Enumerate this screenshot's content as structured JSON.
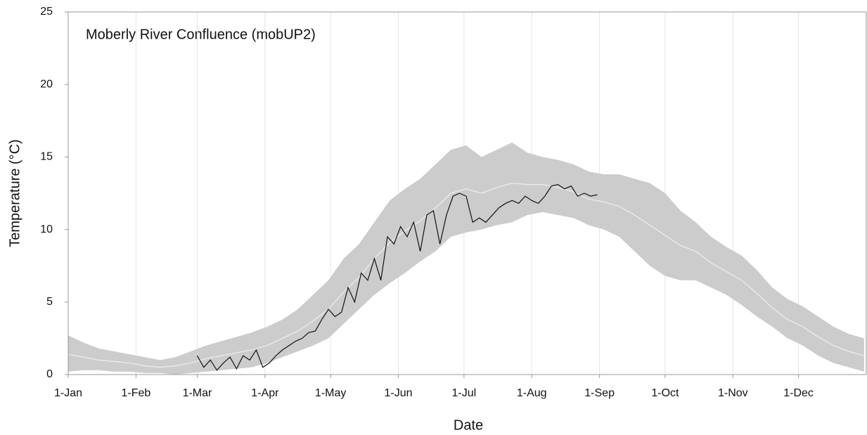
{
  "chart_data": {
    "type": "band_line",
    "title": "Moberly River Confluence (mobUP2)",
    "x_label": "Date",
    "y_label": "Temperature (°C)",
    "xlim": [
      0,
      365
    ],
    "xticks": [
      {
        "value": 0,
        "label": "1-Jan"
      },
      {
        "value": 31,
        "label": "1-Feb"
      },
      {
        "value": 59,
        "label": "1-Mar"
      },
      {
        "value": 90,
        "label": "1-Apr"
      },
      {
        "value": 120,
        "label": "1-May"
      },
      {
        "value": 151,
        "label": "1-Jun"
      },
      {
        "value": 181,
        "label": "1-Jul"
      },
      {
        "value": 212,
        "label": "1-Aug"
      },
      {
        "value": 243,
        "label": "1-Sep"
      },
      {
        "value": 273,
        "label": "1-Oct"
      },
      {
        "value": 304,
        "label": "1-Nov"
      },
      {
        "value": 334,
        "label": "1-Dec"
      }
    ],
    "ylim": [
      0,
      25
    ],
    "yticks": [
      0,
      5,
      10,
      15,
      20,
      25
    ],
    "grid": true,
    "band": {
      "color": "#cccccc",
      "x": [
        0,
        7,
        14,
        21,
        28,
        35,
        42,
        49,
        56,
        63,
        70,
        77,
        84,
        91,
        98,
        105,
        112,
        119,
        126,
        133,
        140,
        147,
        154,
        161,
        168,
        175,
        182,
        189,
        196,
        203,
        210,
        217,
        224,
        231,
        238,
        245,
        252,
        259,
        266,
        273,
        280,
        287,
        294,
        301,
        308,
        315,
        322,
        329,
        336,
        343,
        350,
        357,
        364
      ],
      "upper": [
        2.7,
        2.2,
        1.8,
        1.6,
        1.4,
        1.2,
        1.0,
        1.2,
        1.6,
        2.0,
        2.3,
        2.6,
        2.9,
        3.3,
        3.8,
        4.5,
        5.5,
        6.5,
        8.0,
        9.0,
        10.5,
        12.0,
        12.8,
        13.5,
        14.5,
        15.5,
        15.8,
        15.0,
        15.5,
        16.0,
        15.3,
        15.0,
        14.8,
        14.5,
        14.0,
        13.8,
        13.8,
        13.5,
        13.2,
        12.5,
        11.3,
        10.5,
        9.5,
        8.8,
        8.2,
        7.2,
        6.0,
        5.2,
        4.7,
        4.0,
        3.3,
        2.8,
        2.5
      ],
      "lower": [
        0.2,
        0.3,
        0.3,
        0.2,
        0.2,
        0.1,
        0.1,
        0.0,
        0.1,
        0.2,
        0.3,
        0.4,
        0.5,
        0.8,
        1.2,
        1.6,
        2.0,
        2.5,
        3.5,
        4.5,
        5.5,
        6.3,
        7.0,
        7.8,
        8.5,
        9.5,
        9.8,
        10.0,
        10.3,
        10.5,
        11.0,
        11.2,
        11.0,
        10.8,
        10.3,
        10.0,
        9.5,
        8.5,
        7.5,
        6.8,
        6.5,
        6.5,
        6.0,
        5.5,
        4.8,
        4.0,
        3.3,
        2.5,
        2.0,
        1.3,
        0.8,
        0.5,
        0.2
      ],
      "mean": [
        1.4,
        1.2,
        1.0,
        0.9,
        0.8,
        0.6,
        0.5,
        0.6,
        0.8,
        1.1,
        1.3,
        1.5,
        1.7,
        2.0,
        2.5,
        3.0,
        3.7,
        4.5,
        5.7,
        6.7,
        8.0,
        9.1,
        9.9,
        10.6,
        11.5,
        12.5,
        12.8,
        12.5,
        12.9,
        13.2,
        13.1,
        13.1,
        12.9,
        12.6,
        12.1,
        11.9,
        11.6,
        11.0,
        10.3,
        9.6,
        8.9,
        8.5,
        7.7,
        7.1,
        6.5,
        5.6,
        4.6,
        3.8,
        3.3,
        2.6,
        2.0,
        1.6,
        1.3
      ],
      "mean_color": "#e8e8e8"
    },
    "observed": {
      "color": "#111111",
      "x": [
        59,
        62,
        65,
        68,
        71,
        74,
        77,
        80,
        83,
        86,
        89,
        92,
        95,
        98,
        101,
        104,
        107,
        110,
        113,
        116,
        119,
        122,
        125,
        128,
        131,
        134,
        137,
        140,
        143,
        146,
        149,
        152,
        155,
        158,
        161,
        164,
        167,
        170,
        173,
        176,
        179,
        182,
        185,
        188,
        191,
        194,
        197,
        200,
        203,
        206,
        209,
        212,
        215,
        218,
        221,
        224,
        227,
        230,
        233,
        236,
        239,
        242
      ],
      "values": [
        1.3,
        0.5,
        1.0,
        0.3,
        0.8,
        1.2,
        0.4,
        1.3,
        1.0,
        1.7,
        0.5,
        0.8,
        1.3,
        1.7,
        2.0,
        2.3,
        2.5,
        2.9,
        3.0,
        3.8,
        4.5,
        4.0,
        4.3,
        6.0,
        5.0,
        7.0,
        6.5,
        8.0,
        6.5,
        9.5,
        9.0,
        10.2,
        9.5,
        10.5,
        8.5,
        11.0,
        11.3,
        9.0,
        11.0,
        12.3,
        12.5,
        12.3,
        10.5,
        10.8,
        10.5,
        11.0,
        11.5,
        11.8,
        12.0,
        11.8,
        12.3,
        12.0,
        11.8,
        12.3,
        13.0,
        13.1,
        12.8,
        13.0,
        12.3,
        12.5,
        12.3,
        12.4
      ]
    }
  }
}
